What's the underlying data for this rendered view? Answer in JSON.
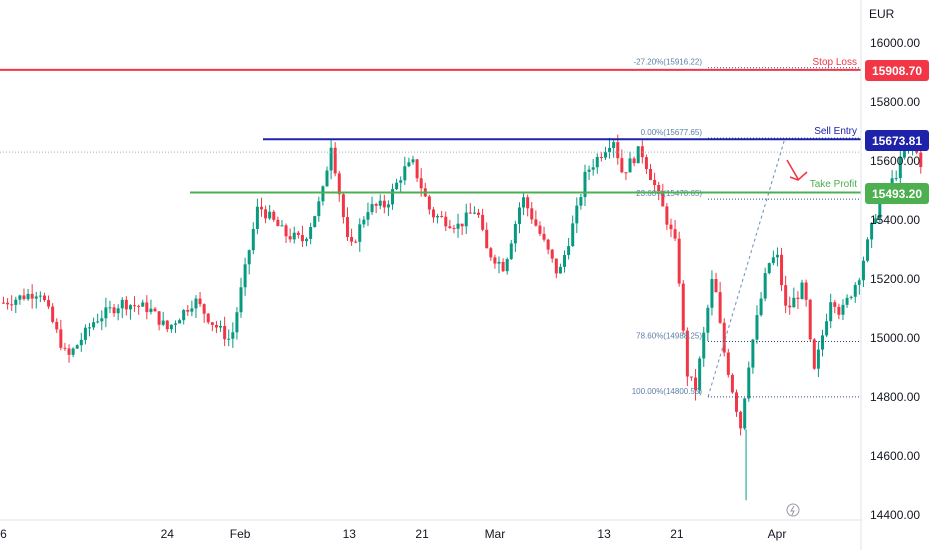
{
  "chart_data": {
    "type": "candlestick",
    "currency": "EUR",
    "ylim": [
      14400,
      16170
    ],
    "y_ticks": [
      "16000.00",
      "15800.00",
      "15600.00",
      "15400.00",
      "15200.00",
      "15000.00",
      "14800.00",
      "14600.00",
      "14400.00"
    ],
    "y_tick_values": [
      16000,
      15800,
      15600,
      15400,
      15200,
      15000,
      14800,
      14600,
      14400
    ],
    "x_ticks": [
      {
        "label": "6",
        "day": 0
      },
      {
        "label": "24",
        "day": 18
      },
      {
        "label": "Feb",
        "day": 26
      },
      {
        "label": "13",
        "day": 38
      },
      {
        "label": "21",
        "day": 46
      },
      {
        "label": "Mar",
        "day": 54
      },
      {
        "label": "13",
        "day": 66
      },
      {
        "label": "21",
        "day": 74
      },
      {
        "label": "Apr",
        "day": 85
      }
    ],
    "levels": {
      "stop_loss": {
        "label": "Stop Loss",
        "value": 15908.7,
        "tag": "15908.70",
        "color": "#f23645"
      },
      "sell_entry": {
        "label": "Sell Entry",
        "value": 15673.81,
        "tag": "15673.81",
        "color": "#1e22aa"
      },
      "take_profit": {
        "label": "Take Profit",
        "value": 15493.2,
        "tag": "15493.20",
        "color": "#4caf50"
      }
    },
    "fib_labels": [
      {
        "text": "-27.20%(15916.22)",
        "value": 15916.22
      },
      {
        "text": "0.00%(15677.65)",
        "value": 15677.65
      },
      {
        "text": "23.60%(15470.65)",
        "value": 15470.65
      },
      {
        "text": "78.60%(14988.25)",
        "value": 14988.25
      },
      {
        "text": "100.00%(14800.55)",
        "value": 14800.55
      }
    ],
    "candle_keypoints": [
      [
        0,
        15120
      ],
      [
        4,
        15160
      ],
      [
        7,
        14930
      ],
      [
        10,
        15060
      ],
      [
        13,
        15120
      ],
      [
        16,
        15100
      ],
      [
        18,
        15030
      ],
      [
        21,
        15130
      ],
      [
        23,
        15050
      ],
      [
        25,
        14990
      ],
      [
        27,
        15300
      ],
      [
        28,
        15450
      ],
      [
        31,
        15350
      ],
      [
        33,
        15330
      ],
      [
        35,
        15480
      ],
      [
        36,
        15660
      ],
      [
        38,
        15290
      ],
      [
        40,
        15440
      ],
      [
        42,
        15450
      ],
      [
        44,
        15570
      ],
      [
        45,
        15590
      ],
      [
        47,
        15420
      ],
      [
        50,
        15380
      ],
      [
        52,
        15440
      ],
      [
        53,
        15300
      ],
      [
        55,
        15240
      ],
      [
        57,
        15480
      ],
      [
        59,
        15350
      ],
      [
        61,
        15210
      ],
      [
        63,
        15430
      ],
      [
        64,
        15560
      ],
      [
        66,
        15640
      ],
      [
        67,
        15680
      ],
      [
        68,
        15560
      ],
      [
        70,
        15640
      ],
      [
        72,
        15480
      ],
      [
        74,
        15300
      ],
      [
        75,
        14890
      ],
      [
        76,
        14820
      ],
      [
        78,
        15220
      ],
      [
        79,
        14980
      ],
      [
        81,
        14700
      ],
      [
        82,
        14940
      ],
      [
        84,
        15250
      ],
      [
        85,
        15280
      ],
      [
        86,
        15090
      ],
      [
        88,
        15180
      ],
      [
        89,
        14870
      ],
      [
        91,
        15150
      ],
      [
        92,
        15080
      ],
      [
        94,
        15210
      ],
      [
        96,
        15440
      ],
      [
        98,
        15550
      ],
      [
        99,
        15630
      ],
      [
        100,
        15650
      ],
      [
        101,
        15580
      ]
    ]
  }
}
